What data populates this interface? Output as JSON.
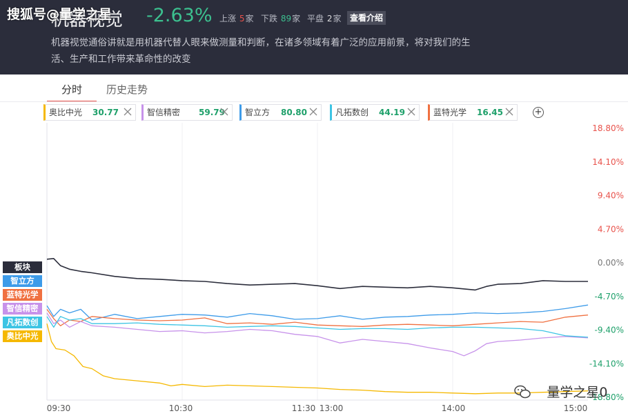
{
  "header": {
    "watermark": "搜狐号@量学之星",
    "title": "机器视觉",
    "change": "-2.63%",
    "up_label": "上涨",
    "up_count": "5",
    "up_unit": "家",
    "down_label": "下跌",
    "down_count": "89",
    "down_unit": "家",
    "flat_label": "平盘",
    "flat_count": "2",
    "flat_unit": "家",
    "intro_button": "查看介绍",
    "description": "机器视觉通俗讲就是用机器代替人眼来做测量和判断，在诸多领域有着广泛的应用前景，将对我们的生活、生产和工作带来革命性的改变"
  },
  "tabs": [
    {
      "label": "分时",
      "active": true
    },
    {
      "label": "历史走势",
      "active": false
    }
  ],
  "stocks": [
    {
      "name": "奥比中光",
      "value": "30.77",
      "color": "#f5b800"
    },
    {
      "name": "智信精密",
      "value": "59.79",
      "color": "#c792ea"
    },
    {
      "name": "智立方",
      "value": "80.80",
      "color": "#3d9be9"
    },
    {
      "name": "凡拓数创",
      "value": "44.19",
      "color": "#3dc4e4"
    },
    {
      "name": "蓝特光学",
      "value": "16.45",
      "color": "#f07040"
    }
  ],
  "add_icon": "plus-circle-icon",
  "close_icon": "close-x-icon",
  "legend_pills": [
    {
      "label": "板块",
      "color": "#2b2d3b"
    },
    {
      "label": "智立方",
      "color": "#3d9be9"
    },
    {
      "label": "蓝特光学",
      "color": "#f07040"
    },
    {
      "label": "智信精密",
      "color": "#c792ea"
    },
    {
      "label": "凡拓数创",
      "color": "#3dc4e4"
    },
    {
      "label": "奥比中光",
      "color": "#f5b800"
    }
  ],
  "bottom_watermark": "量学之星0",
  "chart_data": {
    "type": "line",
    "x_ticks": [
      "09:30",
      "10:30",
      "11:30",
      "13:00",
      "14:00",
      "15:00"
    ],
    "y_ticks": [
      "18.80%",
      "14.10%",
      "9.40%",
      "4.70%",
      "0.00%",
      "-4.70%",
      "-9.40%",
      "-14.10%",
      "-18.80%"
    ],
    "ylim": [
      -18.8,
      18.8
    ],
    "x_range_minutes": [
      0,
      240
    ],
    "series": [
      {
        "name": "板块",
        "color": "#2b2d3b",
        "points": [
          [
            0,
            0.5
          ],
          [
            3,
            0.6
          ],
          [
            6,
            -0.4
          ],
          [
            10,
            -0.9
          ],
          [
            15,
            -1.2
          ],
          [
            20,
            -1.4
          ],
          [
            30,
            -1.9
          ],
          [
            40,
            -2.2
          ],
          [
            50,
            -2.3
          ],
          [
            60,
            -2.5
          ],
          [
            70,
            -2.6
          ],
          [
            80,
            -2.9
          ],
          [
            90,
            -3.1
          ],
          [
            100,
            -3.0
          ],
          [
            110,
            -2.9
          ],
          [
            120,
            -3.2
          ],
          [
            130,
            -3.6
          ],
          [
            140,
            -3.3
          ],
          [
            150,
            -3.4
          ],
          [
            160,
            -3.5
          ],
          [
            170,
            -3.3
          ],
          [
            180,
            -3.5
          ],
          [
            190,
            -3.8
          ],
          [
            195,
            -3.3
          ],
          [
            200,
            -3.0
          ],
          [
            210,
            -2.9
          ],
          [
            220,
            -2.5
          ],
          [
            230,
            -2.6
          ],
          [
            240,
            -2.6
          ]
        ]
      },
      {
        "name": "智立方",
        "color": "#3d9be9",
        "points": [
          [
            0,
            -6.0
          ],
          [
            3,
            -7.5
          ],
          [
            6,
            -6.5
          ],
          [
            10,
            -7.0
          ],
          [
            15,
            -6.5
          ],
          [
            20,
            -8.0
          ],
          [
            30,
            -7.2
          ],
          [
            40,
            -7.8
          ],
          [
            50,
            -7.5
          ],
          [
            60,
            -7.2
          ],
          [
            70,
            -7.3
          ],
          [
            80,
            -7.6
          ],
          [
            90,
            -7.1
          ],
          [
            100,
            -7.4
          ],
          [
            110,
            -7.9
          ],
          [
            120,
            -7.8
          ],
          [
            130,
            -7.4
          ],
          [
            140,
            -7.9
          ],
          [
            150,
            -7.6
          ],
          [
            160,
            -7.5
          ],
          [
            170,
            -7.3
          ],
          [
            180,
            -7.2
          ],
          [
            190,
            -7.0
          ],
          [
            200,
            -7.1
          ],
          [
            210,
            -7.0
          ],
          [
            220,
            -6.8
          ],
          [
            230,
            -6.4
          ],
          [
            240,
            -5.9
          ]
        ]
      },
      {
        "name": "蓝特光学",
        "color": "#f07040",
        "points": [
          [
            0,
            -6.5
          ],
          [
            3,
            -7.8
          ],
          [
            6,
            -8.8
          ],
          [
            10,
            -8.0
          ],
          [
            15,
            -8.2
          ],
          [
            20,
            -7.5
          ],
          [
            30,
            -7.8
          ],
          [
            40,
            -8.0
          ],
          [
            50,
            -8.1
          ],
          [
            60,
            -8.0
          ],
          [
            70,
            -7.7
          ],
          [
            80,
            -8.5
          ],
          [
            90,
            -8.4
          ],
          [
            100,
            -8.6
          ],
          [
            110,
            -8.3
          ],
          [
            120,
            -8.7
          ],
          [
            130,
            -8.8
          ],
          [
            140,
            -8.9
          ],
          [
            150,
            -8.7
          ],
          [
            160,
            -8.6
          ],
          [
            170,
            -8.7
          ],
          [
            180,
            -8.8
          ],
          [
            190,
            -8.6
          ],
          [
            200,
            -8.4
          ],
          [
            210,
            -8.2
          ],
          [
            220,
            -8.3
          ],
          [
            230,
            -7.6
          ],
          [
            240,
            -7.3
          ]
        ]
      },
      {
        "name": "智信精密",
        "color": "#c792ea",
        "points": [
          [
            0,
            -7.0
          ],
          [
            3,
            -8.5
          ],
          [
            6,
            -8.0
          ],
          [
            10,
            -9.0
          ],
          [
            15,
            -8.2
          ],
          [
            20,
            -8.8
          ],
          [
            30,
            -9.0
          ],
          [
            40,
            -9.3
          ],
          [
            50,
            -9.6
          ],
          [
            60,
            -9.5
          ],
          [
            70,
            -9.8
          ],
          [
            80,
            -9.6
          ],
          [
            90,
            -9.3
          ],
          [
            100,
            -9.5
          ],
          [
            110,
            -10.0
          ],
          [
            120,
            -10.3
          ],
          [
            130,
            -11.2
          ],
          [
            140,
            -10.7
          ],
          [
            150,
            -11.0
          ],
          [
            160,
            -11.3
          ],
          [
            170,
            -11.9
          ],
          [
            180,
            -12.4
          ],
          [
            185,
            -13.0
          ],
          [
            190,
            -12.3
          ],
          [
            195,
            -11.3
          ],
          [
            200,
            -11.0
          ],
          [
            210,
            -10.8
          ],
          [
            220,
            -10.5
          ],
          [
            230,
            -10.3
          ],
          [
            240,
            -10.5
          ]
        ]
      },
      {
        "name": "凡拓数创",
        "color": "#3dc4e4",
        "points": [
          [
            0,
            -7.5
          ],
          [
            3,
            -9.0
          ],
          [
            6,
            -7.5
          ],
          [
            10,
            -8.0
          ],
          [
            15,
            -7.8
          ],
          [
            20,
            -8.5
          ],
          [
            30,
            -8.5
          ],
          [
            40,
            -8.4
          ],
          [
            50,
            -8.6
          ],
          [
            60,
            -8.7
          ],
          [
            70,
            -8.8
          ],
          [
            80,
            -9.0
          ],
          [
            90,
            -8.9
          ],
          [
            100,
            -8.8
          ],
          [
            110,
            -8.9
          ],
          [
            120,
            -9.1
          ],
          [
            130,
            -9.3
          ],
          [
            140,
            -9.2
          ],
          [
            150,
            -9.2
          ],
          [
            160,
            -9.3
          ],
          [
            170,
            -9.1
          ],
          [
            180,
            -9.0
          ],
          [
            190,
            -9.0
          ],
          [
            200,
            -9.1
          ],
          [
            210,
            -9.2
          ],
          [
            220,
            -9.5
          ],
          [
            230,
            -10.2
          ],
          [
            240,
            -10.4
          ]
        ]
      },
      {
        "name": "奥比中光",
        "color": "#f5b800",
        "points": [
          [
            0,
            -8.5
          ],
          [
            2,
            -11.0
          ],
          [
            4,
            -12.0
          ],
          [
            8,
            -12.2
          ],
          [
            12,
            -13.0
          ],
          [
            16,
            -14.5
          ],
          [
            20,
            -14.8
          ],
          [
            25,
            -15.8
          ],
          [
            30,
            -16.2
          ],
          [
            40,
            -16.5
          ],
          [
            50,
            -16.8
          ],
          [
            55,
            -17.2
          ],
          [
            60,
            -17.0
          ],
          [
            70,
            -17.3
          ],
          [
            75,
            -17.2
          ],
          [
            80,
            -17.1
          ],
          [
            90,
            -17.2
          ],
          [
            100,
            -17.3
          ],
          [
            110,
            -17.4
          ],
          [
            120,
            -17.5
          ],
          [
            130,
            -17.7
          ],
          [
            140,
            -17.8
          ],
          [
            150,
            -18.0
          ],
          [
            160,
            -18.1
          ],
          [
            170,
            -18.1
          ],
          [
            180,
            -18.2
          ],
          [
            190,
            -18.3
          ],
          [
            200,
            -18.2
          ],
          [
            210,
            -18.2
          ],
          [
            220,
            -18.1
          ],
          [
            230,
            -18.0
          ],
          [
            240,
            -17.9
          ]
        ]
      }
    ]
  }
}
